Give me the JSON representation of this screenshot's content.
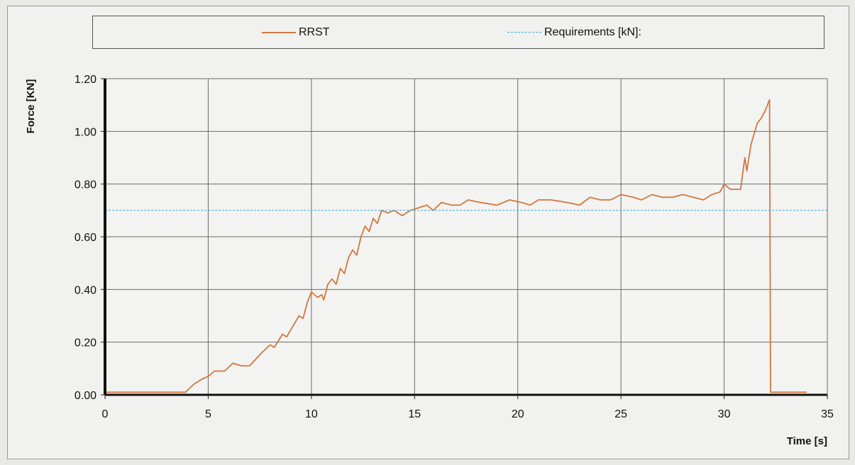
{
  "chart_data": {
    "type": "line",
    "xlabel": "Time [s]",
    "ylabel": "Force [KN]",
    "xlim": [
      0,
      35
    ],
    "ylim": [
      0,
      1.2
    ],
    "xticks": [
      "0",
      "5",
      "10",
      "15",
      "20",
      "25",
      "30",
      "35"
    ],
    "yticks": [
      "0.00",
      "0.20",
      "0.40",
      "0.60",
      "0.80",
      "1.00",
      "1.20"
    ],
    "grid": true,
    "legend_position": "top",
    "series": [
      {
        "name": "RRST",
        "color": "#d07840",
        "style": "solid",
        "points": [
          [
            0,
            0.01
          ],
          [
            3.9,
            0.01
          ],
          [
            4.3,
            0.04
          ],
          [
            4.7,
            0.06
          ],
          [
            5.0,
            0.07
          ],
          [
            5.3,
            0.09
          ],
          [
            5.8,
            0.09
          ],
          [
            6.2,
            0.12
          ],
          [
            6.6,
            0.11
          ],
          [
            7.0,
            0.11
          ],
          [
            7.6,
            0.16
          ],
          [
            8.0,
            0.19
          ],
          [
            8.2,
            0.18
          ],
          [
            8.6,
            0.23
          ],
          [
            8.8,
            0.22
          ],
          [
            9.1,
            0.26
          ],
          [
            9.4,
            0.3
          ],
          [
            9.6,
            0.29
          ],
          [
            9.8,
            0.35
          ],
          [
            10.0,
            0.39
          ],
          [
            10.3,
            0.37
          ],
          [
            10.5,
            0.38
          ],
          [
            10.6,
            0.36
          ],
          [
            10.8,
            0.42
          ],
          [
            11.0,
            0.44
          ],
          [
            11.2,
            0.42
          ],
          [
            11.4,
            0.48
          ],
          [
            11.6,
            0.46
          ],
          [
            11.8,
            0.52
          ],
          [
            12.0,
            0.55
          ],
          [
            12.2,
            0.53
          ],
          [
            12.4,
            0.6
          ],
          [
            12.6,
            0.64
          ],
          [
            12.8,
            0.62
          ],
          [
            13.0,
            0.67
          ],
          [
            13.2,
            0.65
          ],
          [
            13.4,
            0.7
          ],
          [
            13.7,
            0.69
          ],
          [
            14.0,
            0.7
          ],
          [
            14.4,
            0.68
          ],
          [
            14.8,
            0.7
          ],
          [
            15.2,
            0.71
          ],
          [
            15.6,
            0.72
          ],
          [
            15.9,
            0.7
          ],
          [
            16.3,
            0.73
          ],
          [
            16.8,
            0.72
          ],
          [
            17.2,
            0.72
          ],
          [
            17.6,
            0.74
          ],
          [
            18.2,
            0.73
          ],
          [
            19.0,
            0.72
          ],
          [
            19.6,
            0.74
          ],
          [
            20.2,
            0.73
          ],
          [
            20.6,
            0.72
          ],
          [
            21.0,
            0.74
          ],
          [
            21.6,
            0.74
          ],
          [
            22.4,
            0.73
          ],
          [
            23.0,
            0.72
          ],
          [
            23.5,
            0.75
          ],
          [
            24.0,
            0.74
          ],
          [
            24.5,
            0.74
          ],
          [
            25.0,
            0.76
          ],
          [
            25.6,
            0.75
          ],
          [
            26.0,
            0.74
          ],
          [
            26.5,
            0.76
          ],
          [
            27.0,
            0.75
          ],
          [
            27.5,
            0.75
          ],
          [
            28.0,
            0.76
          ],
          [
            28.5,
            0.75
          ],
          [
            29.0,
            0.74
          ],
          [
            29.4,
            0.76
          ],
          [
            29.8,
            0.77
          ],
          [
            30.0,
            0.8
          ],
          [
            30.3,
            0.78
          ],
          [
            30.8,
            0.78
          ],
          [
            31.0,
            0.9
          ],
          [
            31.1,
            0.85
          ],
          [
            31.3,
            0.95
          ],
          [
            31.6,
            1.03
          ],
          [
            31.8,
            1.05
          ],
          [
            32.0,
            1.08
          ],
          [
            32.2,
            1.12
          ],
          [
            32.25,
            0.01
          ],
          [
            34.0,
            0.01
          ]
        ]
      },
      {
        "name": "Requirements [kN]:",
        "color": "#3aa9d8",
        "style": "dashed",
        "points": [
          [
            0,
            0.7
          ],
          [
            35,
            0.7
          ]
        ]
      }
    ]
  }
}
